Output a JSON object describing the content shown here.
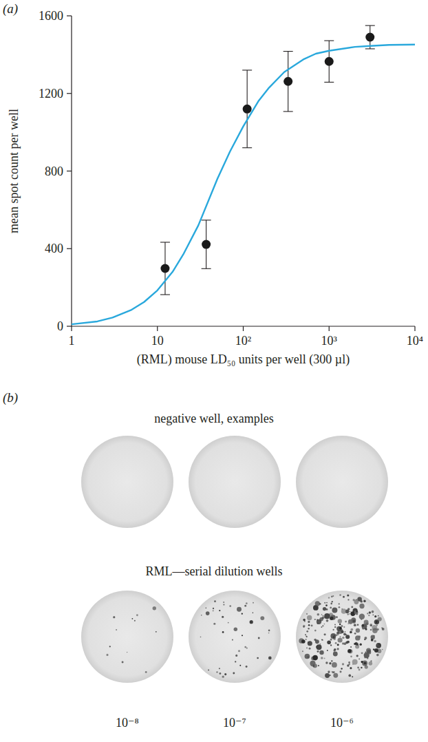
{
  "chart_data": {
    "type": "scatter",
    "panel_label": "(a)",
    "x_label": "(RML) mouse LD₅₀ units per well (300 µl)",
    "y_label": "mean spot count per well",
    "log": "x",
    "xlim": [
      1,
      10000
    ],
    "xticks": [
      1,
      10,
      {
        "value": 100,
        "label": "10²"
      },
      {
        "value": 1000,
        "label": "10³"
      },
      {
        "value": 10000,
        "label": "10⁴"
      }
    ],
    "ylim": [
      0,
      1600
    ],
    "yticks": [
      0,
      400,
      800,
      1200,
      1600
    ],
    "grid": false,
    "series": [
      {
        "type": "scatter",
        "color": "#1a1a1a",
        "marker": "circle",
        "x": [
          12.3,
          37,
          111,
          333,
          1000,
          3000
        ],
        "values": [
          298,
          422,
          1120,
          1262,
          1365,
          1490
        ],
        "errors": [
          135,
          125,
          200,
          155,
          107,
          60
        ]
      },
      {
        "type": "line",
        "color": "#29a8dc",
        "line_style": "solid",
        "x": [
          1,
          2,
          3,
          5,
          7,
          10,
          15,
          20,
          30,
          50,
          70,
          100,
          150,
          200,
          300,
          500,
          700,
          1000,
          2000,
          3000,
          5000,
          10000
        ],
        "values": [
          10,
          25,
          45,
          85,
          125,
          185,
          280,
          370,
          520,
          760,
          900,
          1030,
          1160,
          1230,
          1310,
          1375,
          1405,
          1420,
          1440,
          1445,
          1450,
          1452
        ]
      }
    ]
  },
  "panel_b": {
    "panel_label": "(b)",
    "negative_title": "negative well, examples",
    "dilution_title": "RML—serial dilution wells",
    "dilution_labels": [
      "10⁻⁸",
      "10⁻⁷",
      "10⁻⁶"
    ]
  }
}
